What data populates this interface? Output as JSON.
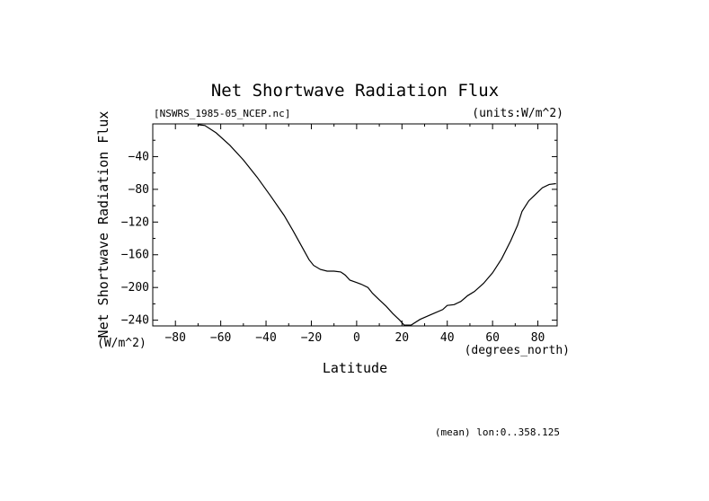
{
  "chart_data": {
    "type": "line",
    "title": "Net Shortwave Radiation Flux",
    "file_label": "[NSWRS_1985-05_NCEP.nc]",
    "units_label": "(units:W/m^2)",
    "xlabel": "Latitude",
    "xunits": "(degrees_north)",
    "ylabel": "Net Shortwave Radiation Flux",
    "yunits": "(W/m^2)",
    "footer": "(mean) lon:0..358.125",
    "xlim": [
      -90,
      88.5
    ],
    "ylim": [
      -247,
      0
    ],
    "xticks": [
      -80,
      -60,
      -40,
      -20,
      0,
      20,
      40,
      60,
      80
    ],
    "yticks": [
      -40,
      -80,
      -120,
      -160,
      -200,
      -240
    ],
    "grid": false,
    "x": [
      -70,
      -67,
      -62,
      -56,
      -50,
      -44,
      -38,
      -32,
      -28,
      -24,
      -21,
      -19,
      -16,
      -13,
      -10,
      -7,
      -5,
      -3,
      0,
      2,
      5,
      7,
      10,
      13,
      16,
      19,
      21,
      24,
      28,
      33,
      38,
      40,
      43,
      46,
      49,
      52,
      56,
      60,
      64,
      68,
      71,
      73,
      76,
      79,
      82,
      85,
      88
    ],
    "y": [
      -1,
      -2,
      -11,
      -26,
      -44,
      -65,
      -88,
      -112,
      -131,
      -151,
      -166,
      -173,
      -178,
      -180,
      -180,
      -181,
      -185,
      -191,
      -194,
      -196,
      -200,
      -207,
      -215,
      -223,
      -232,
      -240,
      -246,
      -246,
      -239,
      -233,
      -227,
      -222,
      -221,
      -217,
      -210,
      -205,
      -195,
      -182,
      -165,
      -143,
      -124,
      -107,
      -94,
      -86,
      -78,
      -74,
      -73
    ]
  }
}
